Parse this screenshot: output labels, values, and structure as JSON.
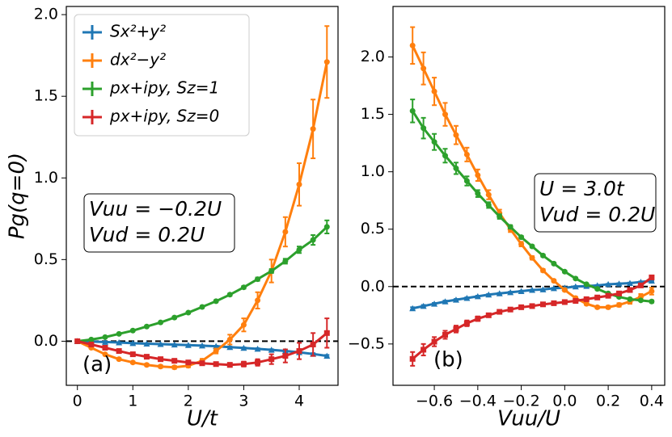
{
  "chart_data": [
    {
      "type": "line",
      "xlabel": "U/t",
      "ylabel": "Pg(q=0)",
      "panel_label": "(a)",
      "annotation": [
        "Vuu = −0.2U",
        "Vud = 0.2U"
      ],
      "legend": "upper left",
      "hline": 0,
      "xlim": [
        -0.2,
        4.7
      ],
      "ylim": [
        -0.27,
        2.05
      ],
      "xticks": [
        0,
        1,
        2,
        3,
        4
      ],
      "yticks": [
        {
          "value": 0,
          "label": "0.0"
        },
        {
          "value": 0.5,
          "label": "0.5"
        },
        {
          "value": 1,
          "label": "1.0"
        },
        {
          "value": 1.5,
          "label": "1.5"
        },
        {
          "value": 2,
          "label": "2.0"
        }
      ],
      "x": [
        0,
        0.25,
        0.5,
        0.75,
        1,
        1.25,
        1.5,
        1.75,
        2,
        2.25,
        2.5,
        2.75,
        3,
        3.25,
        3.5,
        3.75,
        4,
        4.25,
        4.5
      ],
      "series": [
        {
          "name": "Sx²+y²",
          "color": "#1f77b4",
          "marker": "triangle",
          "values": [
            0,
            -0.002,
            -0.005,
            -0.008,
            -0.012,
            -0.015,
            -0.018,
            -0.021,
            -0.024,
            -0.027,
            -0.031,
            -0.036,
            -0.041,
            -0.047,
            -0.053,
            -0.06,
            -0.068,
            -0.078,
            -0.09
          ],
          "errors": [
            0,
            0.002,
            0.002,
            0.002,
            0.002,
            0.002,
            0.002,
            0.002,
            0.003,
            0.003,
            0.003,
            0.003,
            0.003,
            0.004,
            0.004,
            0.004,
            0.005,
            0.005,
            0.006
          ]
        },
        {
          "name": "dx²−y²",
          "color": "#ff7f0e",
          "marker": "circle",
          "values": [
            0,
            -0.04,
            -0.08,
            -0.11,
            -0.13,
            -0.145,
            -0.155,
            -0.16,
            -0.15,
            -0.12,
            -0.06,
            0.01,
            0.1,
            0.25,
            0.43,
            0.67,
            0.96,
            1.3,
            1.71
          ],
          "errors": [
            0,
            0.005,
            0.005,
            0.006,
            0.006,
            0.007,
            0.008,
            0.009,
            0.01,
            0.012,
            0.015,
            0.03,
            0.04,
            0.05,
            0.07,
            0.09,
            0.13,
            0.18,
            0.22
          ]
        },
        {
          "name": "px+ipy, Sz=1",
          "color": "#2ca02c",
          "marker": "circle",
          "values": [
            0,
            0.01,
            0.025,
            0.045,
            0.065,
            0.09,
            0.115,
            0.145,
            0.175,
            0.21,
            0.245,
            0.285,
            0.33,
            0.38,
            0.43,
            0.49,
            0.56,
            0.62,
            0.7
          ],
          "errors": [
            0,
            0.003,
            0.003,
            0.003,
            0.004,
            0.004,
            0.004,
            0.005,
            0.005,
            0.006,
            0.006,
            0.007,
            0.008,
            0.01,
            0.012,
            0.015,
            0.02,
            0.03,
            0.04
          ]
        },
        {
          "name": "px+ipy, Sz=0",
          "color": "#d62728",
          "marker": "square",
          "values": [
            0,
            -0.02,
            -0.04,
            -0.06,
            -0.08,
            -0.095,
            -0.11,
            -0.12,
            -0.13,
            -0.135,
            -0.14,
            -0.145,
            -0.14,
            -0.13,
            -0.11,
            -0.09,
            -0.06,
            -0.02,
            0.05
          ],
          "errors": [
            0,
            0.003,
            0.003,
            0.004,
            0.004,
            0.005,
            0.005,
            0.006,
            0.007,
            0.008,
            0.01,
            0.012,
            0.015,
            0.02,
            0.03,
            0.04,
            0.05,
            0.07,
            0.09
          ]
        }
      ]
    },
    {
      "type": "line",
      "xlabel": "Vuu/U",
      "panel_label": "(b)",
      "annotation": [
        "U = 3.0t",
        "Vud = 0.2U"
      ],
      "hline": 0,
      "xlim": [
        -0.79,
        0.46
      ],
      "ylim": [
        -0.86,
        2.44
      ],
      "xticks": [
        {
          "value": -0.6,
          "label": "−0.6"
        },
        {
          "value": -0.4,
          "label": "−0.4"
        },
        {
          "value": -0.2,
          "label": "−0.2"
        },
        {
          "value": 0,
          "label": "0.0"
        },
        {
          "value": 0.2,
          "label": "0.2"
        },
        {
          "value": 0.4,
          "label": "0.4"
        }
      ],
      "yticks": [
        {
          "value": -0.5,
          "label": "−0.5"
        },
        {
          "value": 0,
          "label": "0.0"
        },
        {
          "value": 0.5,
          "label": "0.5"
        },
        {
          "value": 1,
          "label": "1.0"
        },
        {
          "value": 1.5,
          "label": "1.5"
        },
        {
          "value": 2,
          "label": "2.0"
        }
      ],
      "x": [
        -0.7,
        -0.65,
        -0.6,
        -0.55,
        -0.5,
        -0.45,
        -0.4,
        -0.35,
        -0.3,
        -0.25,
        -0.2,
        -0.15,
        -0.1,
        -0.05,
        0,
        0.05,
        0.1,
        0.15,
        0.2,
        0.25,
        0.3,
        0.35,
        0.4
      ],
      "series": [
        {
          "color": "#1f77b4",
          "marker": "triangle",
          "values": [
            -0.19,
            -0.17,
            -0.15,
            -0.13,
            -0.115,
            -0.1,
            -0.085,
            -0.07,
            -0.06,
            -0.05,
            -0.04,
            -0.03,
            -0.025,
            -0.015,
            -0.01,
            0,
            0.005,
            0.01,
            0.02,
            0.025,
            0.03,
            0.04,
            0.05
          ],
          "errors": [
            0.01,
            0.01,
            0.008,
            0.008,
            0.007,
            0.006,
            0.006,
            0.005,
            0.005,
            0.005,
            0.004,
            0.004,
            0.004,
            0.004,
            0.004,
            0.004,
            0.004,
            0.004,
            0.004,
            0.004,
            0.005,
            0.005,
            0.005
          ]
        },
        {
          "color": "#ff7f0e",
          "marker": "circle",
          "values": [
            2.1,
            1.9,
            1.7,
            1.5,
            1.32,
            1.15,
            0.97,
            0.8,
            0.64,
            0.5,
            0.37,
            0.25,
            0.14,
            0.05,
            -0.03,
            -0.1,
            -0.15,
            -0.18,
            -0.18,
            -0.16,
            -0.13,
            -0.09,
            -0.04
          ],
          "errors": [
            0.16,
            0.14,
            0.12,
            0.1,
            0.08,
            0.06,
            0.05,
            0.04,
            0.03,
            0.025,
            0.02,
            0.015,
            0.012,
            0.01,
            0.01,
            0.01,
            0.01,
            0.01,
            0.012,
            0.015,
            0.02,
            0.025,
            0.03
          ]
        },
        {
          "color": "#2ca02c",
          "marker": "circle",
          "values": [
            1.53,
            1.38,
            1.26,
            1.14,
            1.03,
            0.92,
            0.81,
            0.71,
            0.61,
            0.52,
            0.43,
            0.35,
            0.27,
            0.2,
            0.13,
            0.07,
            0.02,
            -0.02,
            -0.06,
            -0.09,
            -0.11,
            -0.12,
            -0.13
          ],
          "errors": [
            0.1,
            0.09,
            0.07,
            0.06,
            0.05,
            0.04,
            0.03,
            0.025,
            0.02,
            0.015,
            0.012,
            0.01,
            0.01,
            0.008,
            0.008,
            0.008,
            0.008,
            0.008,
            0.008,
            0.008,
            0.008,
            0.008,
            0.01
          ]
        },
        {
          "color": "#d62728",
          "marker": "square",
          "values": [
            -0.63,
            -0.55,
            -0.48,
            -0.42,
            -0.37,
            -0.32,
            -0.28,
            -0.25,
            -0.22,
            -0.2,
            -0.18,
            -0.17,
            -0.155,
            -0.145,
            -0.135,
            -0.125,
            -0.11,
            -0.095,
            -0.08,
            -0.06,
            -0.03,
            0.01,
            0.08
          ],
          "errors": [
            0.06,
            0.05,
            0.04,
            0.035,
            0.03,
            0.025,
            0.02,
            0.015,
            0.012,
            0.01,
            0.01,
            0.008,
            0.008,
            0.008,
            0.008,
            0.008,
            0.008,
            0.008,
            0.008,
            0.01,
            0.01,
            0.012,
            0.015
          ]
        }
      ]
    }
  ]
}
